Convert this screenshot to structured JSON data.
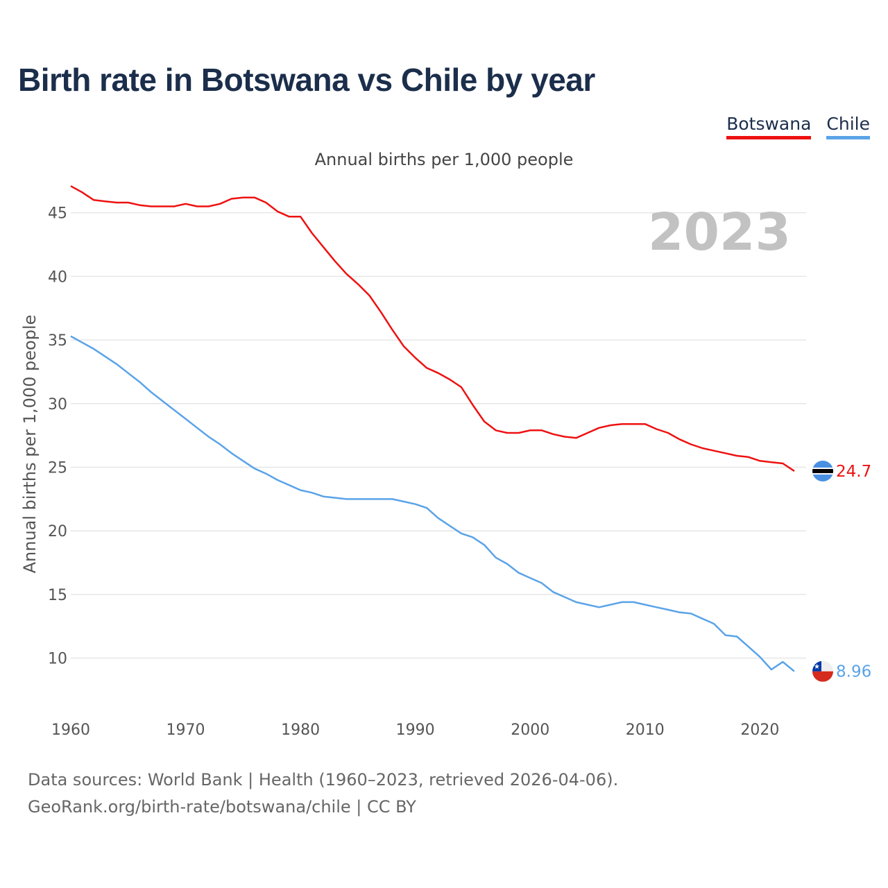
{
  "title": "Birth rate in Botswana vs Chile by year",
  "subtitle": "Annual births per 1,000 people",
  "legend": [
    {
      "label": "Botswana",
      "color": "#ee1111"
    },
    {
      "label": "Chile",
      "color": "#5aa3e8"
    }
  ],
  "year_watermark": "2023",
  "footer": {
    "line1": "Data sources: World Bank | Health (1960–2023, retrieved 2026-04-06).",
    "line2": "GeoRank.org/birth-rate/botswana/chile | CC BY"
  },
  "chart_data": {
    "type": "line",
    "title": "Birth rate in Botswana vs Chile by year",
    "subtitle": "Annual births per 1,000 people",
    "xlabel": "",
    "ylabel": "Annual births per 1,000 people",
    "xlim": [
      1960,
      2023
    ],
    "ylim": [
      6,
      47
    ],
    "x_ticks": [
      1960,
      1970,
      1980,
      1990,
      2000,
      2010,
      2020
    ],
    "y_ticks": [
      10,
      15,
      20,
      25,
      30,
      35,
      40,
      45
    ],
    "grid": true,
    "legend_position": "top-right",
    "x": [
      1960,
      1961,
      1962,
      1963,
      1964,
      1965,
      1966,
      1967,
      1968,
      1969,
      1970,
      1971,
      1972,
      1973,
      1974,
      1975,
      1976,
      1977,
      1978,
      1979,
      1980,
      1981,
      1982,
      1983,
      1984,
      1985,
      1986,
      1987,
      1988,
      1989,
      1990,
      1991,
      1992,
      1993,
      1994,
      1995,
      1996,
      1997,
      1998,
      1999,
      2000,
      2001,
      2002,
      2003,
      2004,
      2005,
      2006,
      2007,
      2008,
      2009,
      2010,
      2011,
      2012,
      2013,
      2014,
      2015,
      2016,
      2017,
      2018,
      2019,
      2020,
      2021,
      2022,
      2023
    ],
    "series": [
      {
        "name": "Botswana",
        "color": "#ee1111",
        "end_label": "24.7",
        "values": [
          47.1,
          46.6,
          46.0,
          45.9,
          45.8,
          45.8,
          45.6,
          45.5,
          45.5,
          45.5,
          45.7,
          45.5,
          45.5,
          45.7,
          46.1,
          46.2,
          46.2,
          45.8,
          45.1,
          44.7,
          44.7,
          43.4,
          42.3,
          41.2,
          40.2,
          39.4,
          38.5,
          37.2,
          35.8,
          34.5,
          33.6,
          32.8,
          32.4,
          31.9,
          31.3,
          29.9,
          28.6,
          27.9,
          27.7,
          27.7,
          27.9,
          27.9,
          27.6,
          27.4,
          27.3,
          27.7,
          28.1,
          28.3,
          28.4,
          28.4,
          28.4,
          28.0,
          27.7,
          27.2,
          26.8,
          26.5,
          26.3,
          26.1,
          25.9,
          25.8,
          25.5,
          25.4,
          25.3,
          24.7
        ]
      },
      {
        "name": "Chile",
        "color": "#5aa3e8",
        "end_label": "8.96",
        "values": [
          35.3,
          34.8,
          34.3,
          33.7,
          33.1,
          32.4,
          31.7,
          30.9,
          30.2,
          29.5,
          28.8,
          28.1,
          27.4,
          26.8,
          26.1,
          25.5,
          24.9,
          24.5,
          24.0,
          23.6,
          23.2,
          23.0,
          22.7,
          22.6,
          22.5,
          22.5,
          22.5,
          22.5,
          22.5,
          22.3,
          22.1,
          21.8,
          21.0,
          20.4,
          19.8,
          19.5,
          18.9,
          17.9,
          17.4,
          16.7,
          16.3,
          15.9,
          15.2,
          14.8,
          14.4,
          14.2,
          14.0,
          14.2,
          14.4,
          14.4,
          14.2,
          14.0,
          13.8,
          13.6,
          13.5,
          13.1,
          12.7,
          11.8,
          11.7,
          10.9,
          10.1,
          9.1,
          9.7,
          8.96
        ]
      }
    ]
  }
}
